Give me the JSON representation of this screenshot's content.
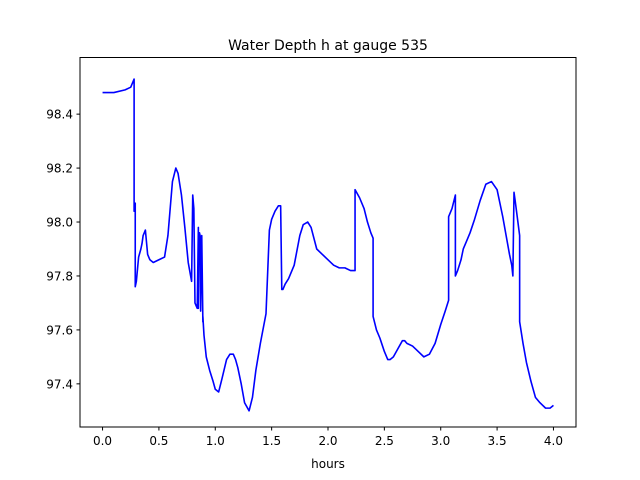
{
  "chart_data": {
    "type": "line",
    "title": "Water Depth h at gauge 535",
    "xlabel": "hours",
    "ylabel": "",
    "xlim": [
      -0.2,
      4.2
    ],
    "ylim": [
      97.24,
      98.61
    ],
    "xticks": [
      0.0,
      0.5,
      1.0,
      1.5,
      2.0,
      2.5,
      3.0,
      3.5,
      4.0
    ],
    "xtick_labels": [
      "0.0",
      "0.5",
      "1.0",
      "1.5",
      "2.0",
      "2.5",
      "3.0",
      "3.5",
      "4.0"
    ],
    "yticks": [
      97.4,
      97.6,
      97.8,
      98.0,
      98.2,
      98.4
    ],
    "ytick_labels": [
      "97.4",
      "97.6",
      "97.8",
      "98.0",
      "98.2",
      "98.4"
    ],
    "grid": false,
    "legend": "none",
    "series": [
      {
        "color": "#0000ff",
        "x": [
          0.0,
          0.1,
          0.2,
          0.25,
          0.28,
          0.28,
          0.29,
          0.29,
          0.3,
          0.32,
          0.34,
          0.35,
          0.36,
          0.38,
          0.4,
          0.42,
          0.45,
          0.5,
          0.55,
          0.58,
          0.6,
          0.62,
          0.65,
          0.67,
          0.7,
          0.73,
          0.76,
          0.79,
          0.8,
          0.81,
          0.82,
          0.83,
          0.84,
          0.85,
          0.85,
          0.86,
          0.87,
          0.87,
          0.88,
          0.89,
          0.89,
          0.9,
          0.92,
          0.95,
          0.98,
          1.0,
          1.03,
          1.06,
          1.1,
          1.13,
          1.16,
          1.18,
          1.2,
          1.23,
          1.26,
          1.3,
          1.33,
          1.36,
          1.4,
          1.45,
          1.48,
          1.48,
          1.5,
          1.53,
          1.56,
          1.58,
          1.59,
          1.6,
          1.62,
          1.65,
          1.7,
          1.75,
          1.78,
          1.82,
          1.85,
          1.9,
          1.95,
          2.0,
          2.05,
          2.1,
          2.15,
          2.2,
          2.24,
          2.24,
          2.28,
          2.32,
          2.35,
          2.38,
          2.4,
          2.4,
          2.43,
          2.46,
          2.5,
          2.53,
          2.55,
          2.58,
          2.62,
          2.66,
          2.68,
          2.7,
          2.75,
          2.8,
          2.85,
          2.9,
          2.95,
          3.0,
          3.04,
          3.07,
          3.07,
          3.1,
          3.13,
          3.13,
          3.15,
          3.18,
          3.2,
          3.23,
          3.26,
          3.3,
          3.35,
          3.4,
          3.45,
          3.5,
          3.55,
          3.58,
          3.61,
          3.63,
          3.64,
          3.65,
          3.66,
          3.7,
          3.7,
          3.73,
          3.76,
          3.8,
          3.84,
          3.88,
          3.93,
          3.97,
          4.0
        ],
        "y": [
          98.48,
          98.48,
          98.49,
          98.5,
          98.53,
          98.04,
          98.07,
          97.76,
          97.78,
          97.87,
          97.9,
          97.92,
          97.95,
          97.97,
          97.88,
          97.86,
          97.85,
          97.86,
          97.87,
          97.95,
          98.05,
          98.15,
          98.2,
          98.18,
          98.1,
          97.98,
          97.85,
          97.78,
          98.1,
          98.05,
          97.7,
          97.69,
          97.68,
          97.98,
          97.68,
          97.96,
          97.94,
          97.67,
          97.95,
          97.63,
          97.65,
          97.58,
          97.5,
          97.45,
          97.41,
          97.38,
          97.37,
          97.42,
          97.49,
          97.51,
          97.51,
          97.49,
          97.46,
          97.4,
          97.33,
          97.3,
          97.35,
          97.45,
          97.55,
          97.66,
          97.97,
          97.97,
          98.01,
          98.04,
          98.06,
          98.06,
          97.75,
          97.75,
          97.77,
          97.79,
          97.84,
          97.95,
          97.99,
          98.0,
          97.98,
          97.9,
          97.88,
          97.86,
          97.84,
          97.83,
          97.83,
          97.82,
          97.82,
          98.12,
          98.09,
          98.05,
          98.0,
          97.96,
          97.94,
          97.65,
          97.6,
          97.57,
          97.52,
          97.49,
          97.49,
          97.5,
          97.53,
          97.56,
          97.56,
          97.55,
          97.54,
          97.52,
          97.5,
          97.51,
          97.55,
          97.62,
          97.67,
          97.71,
          98.02,
          98.05,
          98.1,
          97.8,
          97.82,
          97.86,
          97.9,
          97.93,
          97.96,
          98.01,
          98.08,
          98.14,
          98.15,
          98.12,
          98.02,
          97.95,
          97.88,
          97.84,
          97.8,
          98.11,
          98.08,
          97.95,
          97.63,
          97.55,
          97.48,
          97.41,
          97.35,
          97.33,
          97.31,
          97.31,
          97.32
        ]
      }
    ]
  }
}
